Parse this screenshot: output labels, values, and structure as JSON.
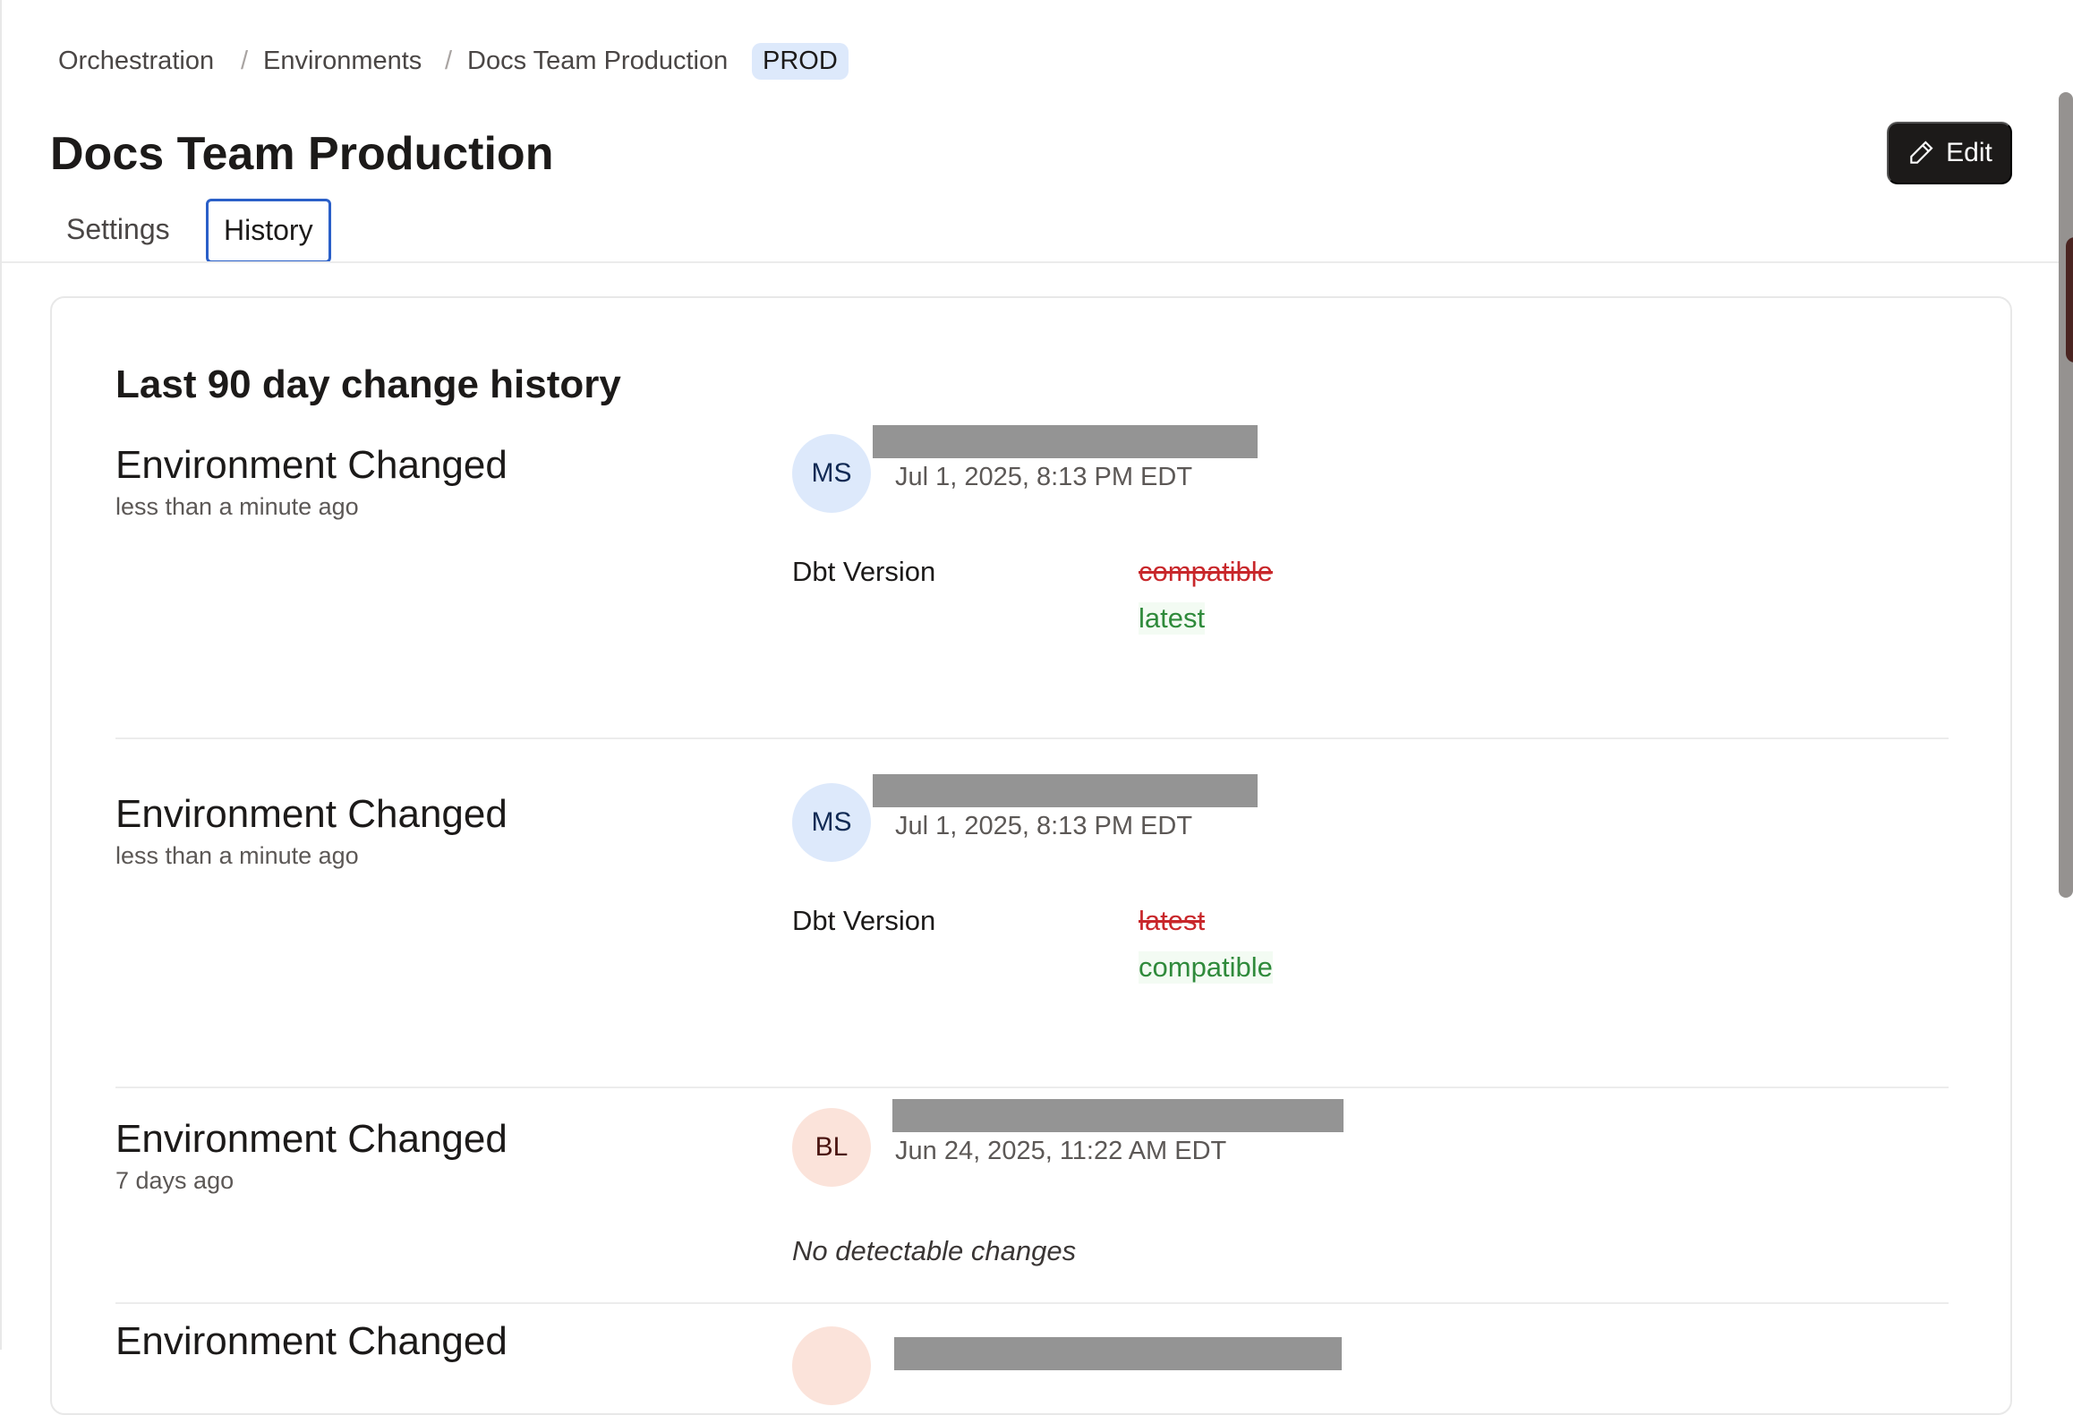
{
  "breadcrumb": {
    "items": [
      "Orchestration",
      "Environments",
      "Docs Team Production"
    ],
    "separator": "/",
    "badge": "PROD"
  },
  "header": {
    "title": "Docs Team Production",
    "edit_label": "Edit"
  },
  "tabs": [
    {
      "label": "Settings",
      "active": false
    },
    {
      "label": "History",
      "active": true
    }
  ],
  "history": {
    "title": "Last 90 day change history",
    "entries": [
      {
        "title": "Environment Changed",
        "ago": "less than a minute ago",
        "initials": "MS",
        "date": "Jul 1, 2025, 8:13 PM EDT",
        "field": "Dbt Version",
        "old": "compatible",
        "new": "latest"
      },
      {
        "title": "Environment Changed",
        "ago": "less than a minute ago",
        "initials": "MS",
        "date": "Jul 1, 2025, 8:13 PM EDT",
        "field": "Dbt Version",
        "old": "latest",
        "new": "compatible"
      },
      {
        "title": "Environment Changed",
        "ago": "7 days ago",
        "initials": "BL",
        "date": "Jun 24, 2025, 11:22 AM EDT",
        "note": "No detectable changes"
      },
      {
        "title": "Environment Changed"
      }
    ]
  },
  "colors": {
    "accent": "#2a5fc8",
    "removed": "#c8272b",
    "added": "#2f8a3b",
    "badge_bg": "#dde9fb"
  }
}
